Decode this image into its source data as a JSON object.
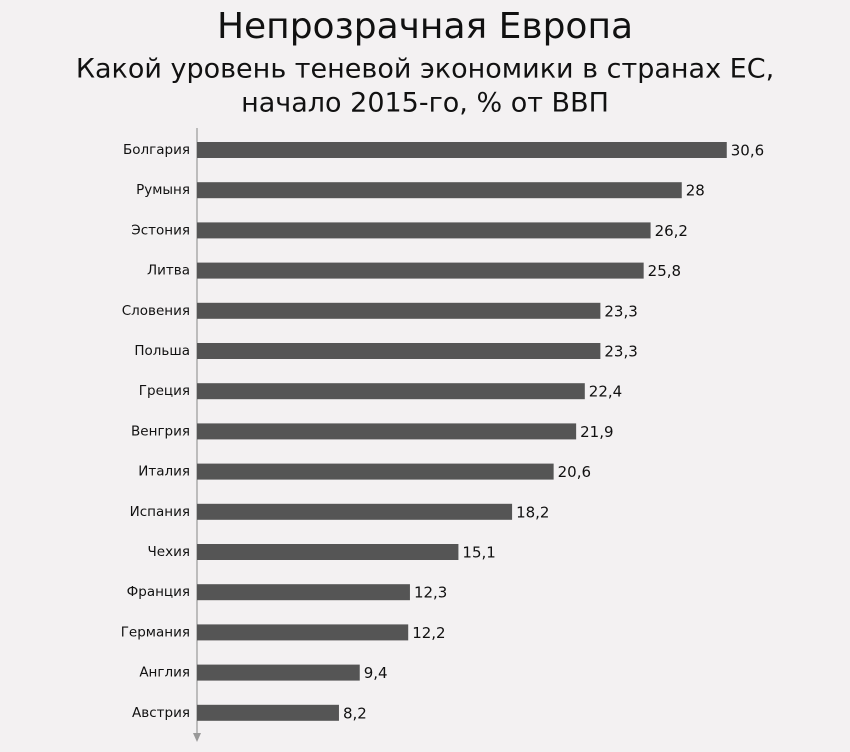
{
  "chart_data": {
    "type": "bar",
    "orientation": "horizontal",
    "title": "Непрозрачная Европа",
    "subtitle": [
      "Какой уровень теневой экономики в странах ЕС,",
      "начало 2015-го, % от ВВП"
    ],
    "categories": [
      "Болгария",
      "Румыня",
      "Эстония",
      "Литва",
      "Словения",
      "Польша",
      "Греция",
      "Венгрия",
      "Италия",
      "Испания",
      "Чехия",
      "Франция",
      "Германия",
      "Англия",
      "Австрия"
    ],
    "values": [
      30.6,
      28,
      26.2,
      25.8,
      23.3,
      23.3,
      22.4,
      21.9,
      20.6,
      18.2,
      15.1,
      12.3,
      12.2,
      9.4,
      8.2
    ],
    "value_labels": [
      "30,6",
      "28",
      "26,2",
      "25,8",
      "23,3",
      "23,3",
      "22,4",
      "21,9",
      "20,6",
      "18,2",
      "15,1",
      "12,3",
      "12,2",
      "9,4",
      "8,2"
    ],
    "color": "#555555",
    "xlim": [
      0,
      32
    ]
  }
}
